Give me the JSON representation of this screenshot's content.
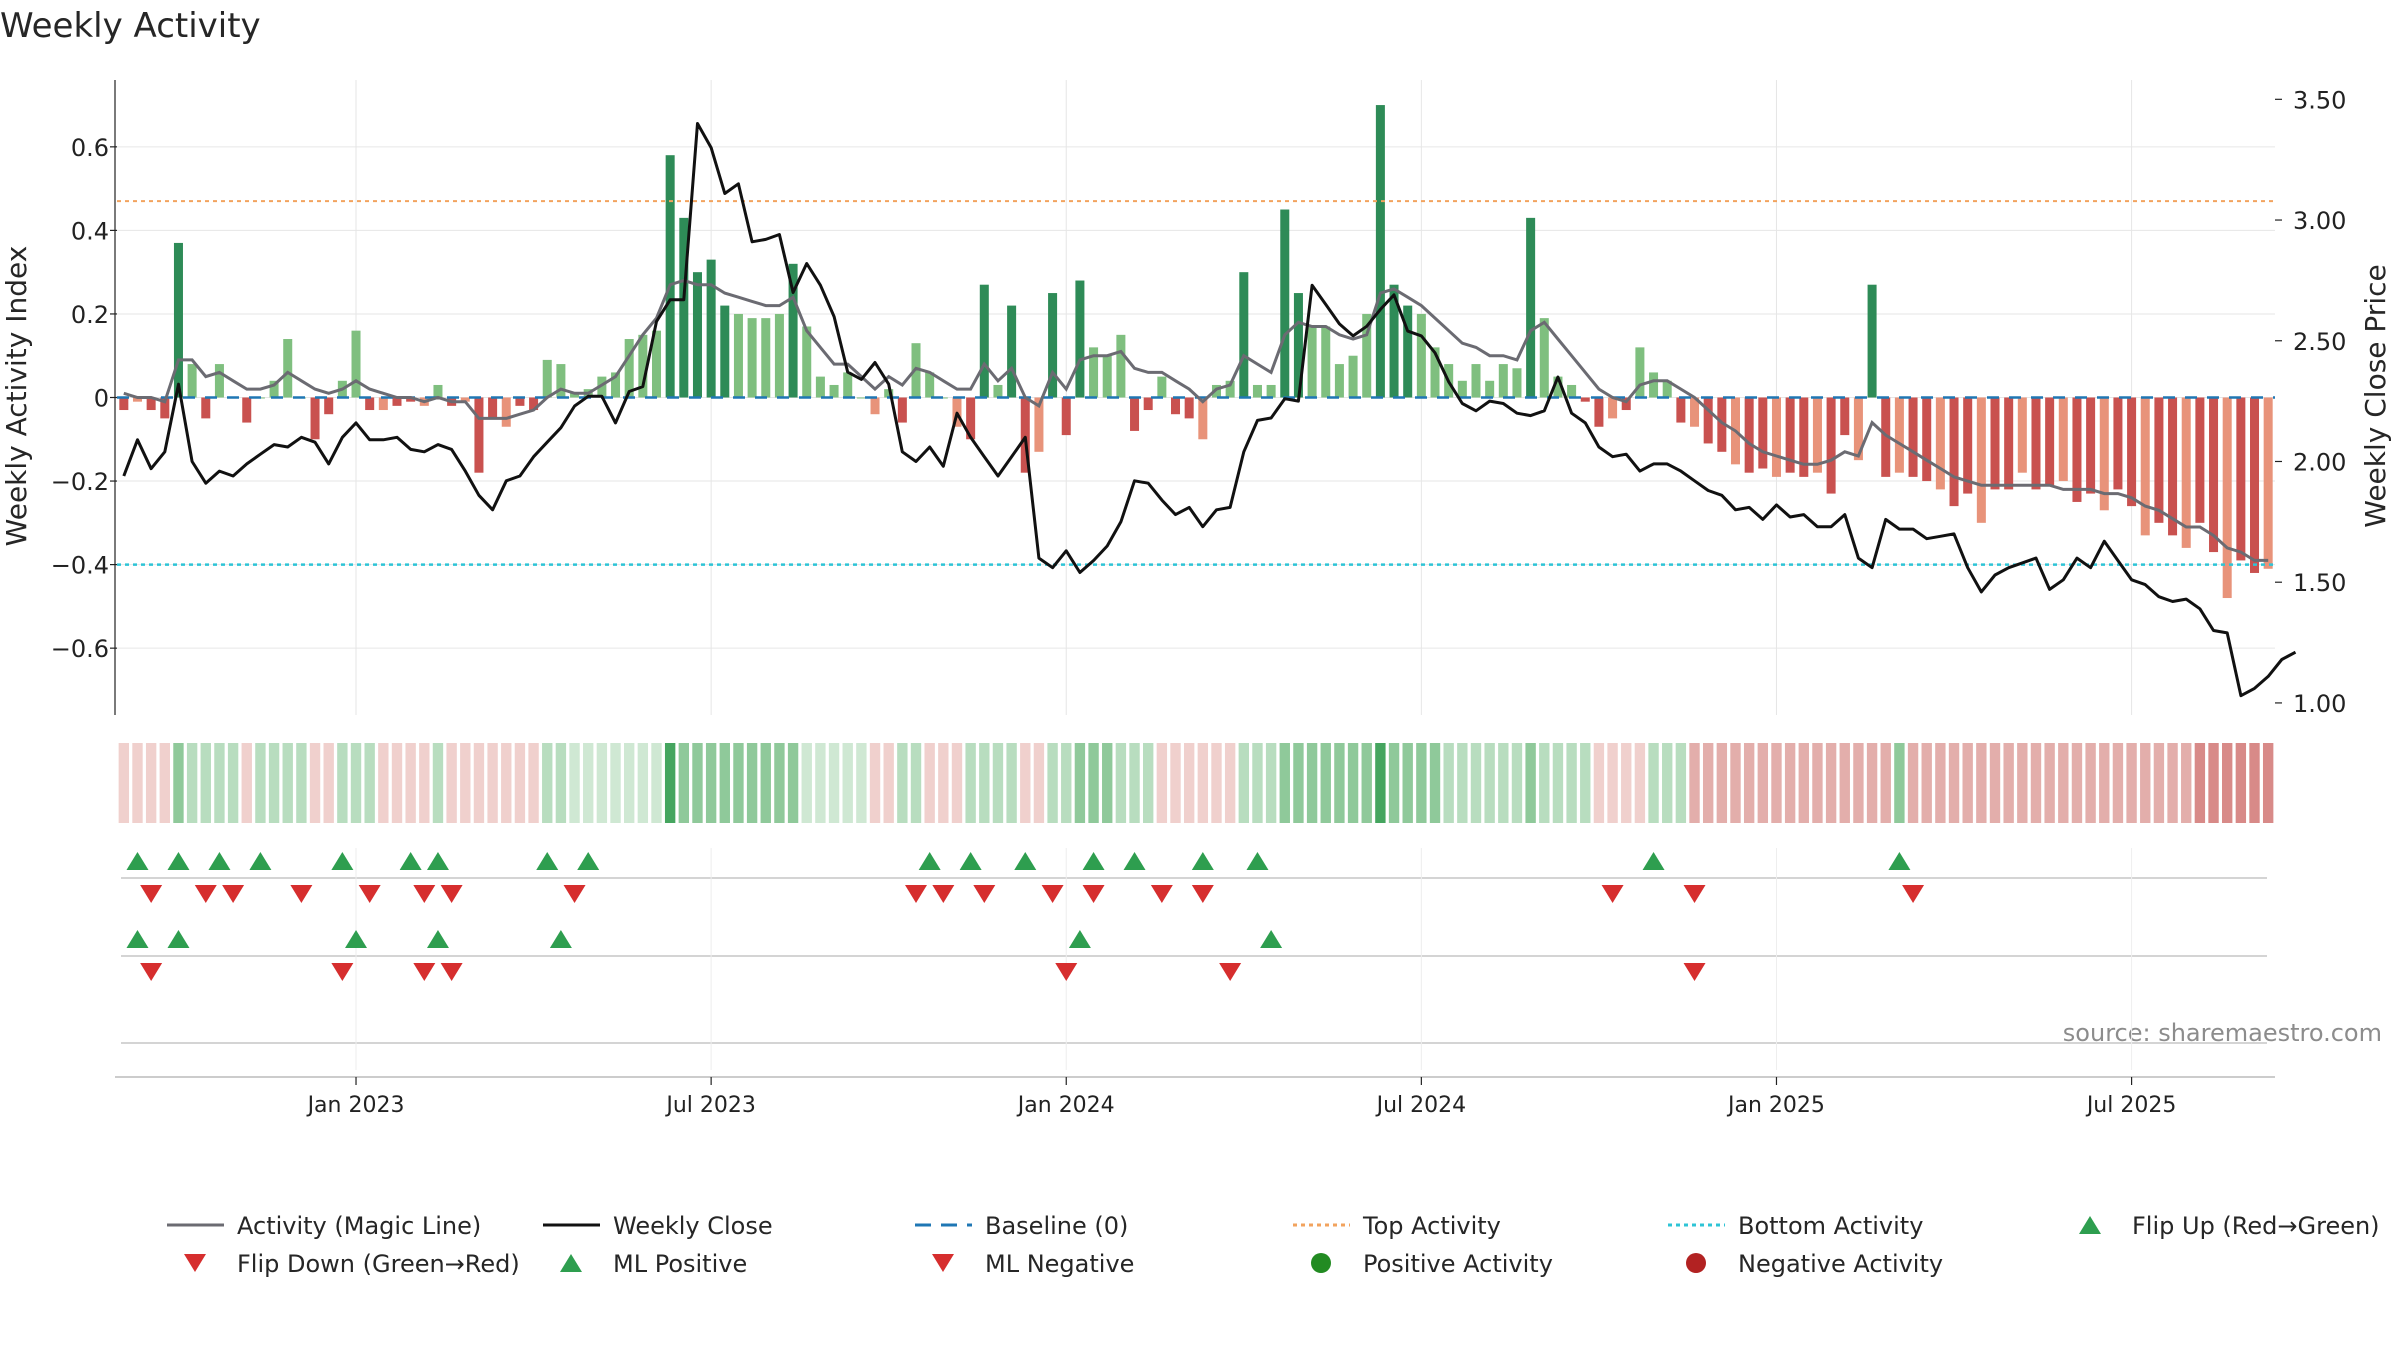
{
  "chart_data": {
    "type": "bar",
    "title": "Weekly Activity",
    "ylabel_left": "Weekly Activity Index",
    "ylabel_right": "Weekly Close Price",
    "source": "source: sharemaestro.com",
    "x_start": "2022-09-05",
    "x_end": "2025-09-22",
    "ylim_left": [
      -0.76,
      0.76
    ],
    "ylim_right": [
      0.95,
      3.58
    ],
    "yticks_left": [
      {
        "v": 0.6,
        "label": "0.6"
      },
      {
        "v": 0.4,
        "label": "0.4"
      },
      {
        "v": 0.2,
        "label": "0.2"
      },
      {
        "v": 0,
        "label": "0"
      },
      {
        "v": -0.2,
        "label": "−0.2"
      },
      {
        "v": -0.4,
        "label": "−0.4"
      },
      {
        "v": -0.6,
        "label": "−0.6"
      }
    ],
    "yticks_right": [
      {
        "v": 3.5,
        "label": "3.50"
      },
      {
        "v": 3.0,
        "label": "3.00"
      },
      {
        "v": 2.5,
        "label": "2.50"
      },
      {
        "v": 2.0,
        "label": "2.00"
      },
      {
        "v": 1.5,
        "label": "1.50"
      },
      {
        "v": 1.0,
        "label": "1.00"
      }
    ],
    "xticks": [
      {
        "label": "Jan 2023",
        "index": 17
      },
      {
        "label": "Jul 2023",
        "index": 43
      },
      {
        "label": "Jan 2024",
        "index": 69
      },
      {
        "label": "Jul 2024",
        "index": 95
      },
      {
        "label": "Jan 2025",
        "index": 121
      },
      {
        "label": "Jul 2025",
        "index": 147
      }
    ],
    "top_activity": 0.47,
    "bottom_activity": -0.4,
    "activity": [
      -0.03,
      -0.01,
      -0.03,
      -0.05,
      0.37,
      0.08,
      -0.05,
      0.08,
      0.0,
      -0.06,
      0.0,
      0.04,
      0.14,
      0.0,
      -0.1,
      -0.04,
      0.04,
      0.16,
      -0.03,
      -0.03,
      -0.02,
      -0.01,
      -0.02,
      0.03,
      -0.02,
      -0.01,
      -0.18,
      -0.05,
      -0.07,
      -0.02,
      -0.03,
      0.09,
      0.08,
      0.01,
      0.02,
      0.05,
      0.06,
      0.14,
      0.15,
      0.16,
      0.58,
      0.43,
      0.3,
      0.33,
      0.22,
      0.2,
      0.19,
      0.19,
      0.2,
      0.32,
      0.17,
      0.05,
      0.03,
      0.06,
      0.0,
      -0.04,
      0.02,
      -0.06,
      0.13,
      0.06,
      0.0,
      -0.07,
      -0.1,
      0.27,
      0.03,
      0.22,
      -0.18,
      -0.13,
      0.25,
      -0.09,
      0.28,
      0.12,
      0.1,
      0.15,
      -0.08,
      -0.03,
      0.05,
      -0.04,
      -0.05,
      -0.1,
      0.03,
      0.04,
      0.3,
      0.03,
      0.03,
      0.45,
      0.25,
      0.17,
      0.17,
      0.08,
      0.1,
      0.2,
      0.7,
      0.27,
      0.22,
      0.2,
      0.12,
      0.08,
      0.04,
      0.08,
      0.04,
      0.08,
      0.07,
      0.43,
      0.19,
      0.05,
      0.03,
      -0.01,
      -0.07,
      -0.05,
      -0.03,
      0.12,
      0.06,
      0.04,
      -0.06,
      -0.07,
      -0.11,
      -0.13,
      -0.16,
      -0.18,
      -0.17,
      -0.19,
      -0.18,
      -0.19,
      -0.18,
      -0.23,
      -0.09,
      -0.15,
      0.27,
      -0.19,
      -0.18,
      -0.19,
      -0.2,
      -0.22,
      -0.26,
      -0.23,
      -0.3,
      -0.22,
      -0.22,
      -0.18,
      -0.22,
      -0.21,
      -0.2,
      -0.25,
      -0.23,
      -0.27,
      -0.22,
      -0.26,
      -0.33,
      -0.3,
      -0.33,
      -0.36,
      -0.3,
      -0.37,
      -0.48,
      -0.39,
      -0.42,
      -0.41
    ],
    "magic_line": [
      0.01,
      0.0,
      0.0,
      -0.01,
      0.09,
      0.09,
      0.05,
      0.06,
      0.04,
      0.02,
      0.02,
      0.03,
      0.06,
      0.04,
      0.02,
      0.01,
      0.02,
      0.04,
      0.02,
      0.01,
      0.0,
      0.0,
      -0.01,
      0.0,
      -0.01,
      -0.01,
      -0.05,
      -0.05,
      -0.05,
      -0.04,
      -0.03,
      0.0,
      0.02,
      0.01,
      0.01,
      0.03,
      0.05,
      0.1,
      0.15,
      0.19,
      0.27,
      0.28,
      0.27,
      0.27,
      0.25,
      0.24,
      0.23,
      0.22,
      0.22,
      0.24,
      0.16,
      0.12,
      0.08,
      0.08,
      0.05,
      0.02,
      0.05,
      0.03,
      0.07,
      0.06,
      0.04,
      0.02,
      0.02,
      0.08,
      0.04,
      0.07,
      0.0,
      -0.02,
      0.06,
      0.02,
      0.09,
      0.1,
      0.1,
      0.11,
      0.07,
      0.06,
      0.06,
      0.04,
      0.02,
      -0.01,
      0.02,
      0.03,
      0.1,
      0.08,
      0.06,
      0.15,
      0.18,
      0.17,
      0.17,
      0.15,
      0.14,
      0.15,
      0.25,
      0.26,
      0.24,
      0.22,
      0.19,
      0.16,
      0.13,
      0.12,
      0.1,
      0.1,
      0.09,
      0.16,
      0.18,
      0.14,
      0.1,
      0.06,
      0.02,
      0.0,
      -0.01,
      0.03,
      0.04,
      0.04,
      0.02,
      0.0,
      -0.03,
      -0.06,
      -0.08,
      -0.11,
      -0.13,
      -0.14,
      -0.15,
      -0.16,
      -0.16,
      -0.15,
      -0.13,
      -0.14,
      -0.06,
      -0.09,
      -0.11,
      -0.13,
      -0.15,
      -0.17,
      -0.19,
      -0.2,
      -0.21,
      -0.21,
      -0.21,
      -0.21,
      -0.21,
      -0.21,
      -0.22,
      -0.22,
      -0.22,
      -0.23,
      -0.23,
      -0.24,
      -0.26,
      -0.27,
      -0.29,
      -0.31,
      -0.31,
      -0.33,
      -0.36,
      -0.37,
      -0.39,
      -0.39
    ],
    "weekly_close": [
      1.94,
      2.09,
      1.97,
      2.04,
      2.32,
      2.0,
      1.91,
      1.96,
      1.94,
      1.99,
      2.03,
      2.07,
      2.06,
      2.1,
      2.08,
      1.99,
      2.1,
      2.16,
      2.09,
      2.09,
      2.1,
      2.05,
      2.04,
      2.07,
      2.05,
      1.96,
      1.86,
      1.8,
      1.92,
      1.94,
      2.02,
      2.08,
      2.14,
      2.23,
      2.27,
      2.27,
      2.16,
      2.29,
      2.31,
      2.58,
      2.67,
      2.67,
      3.4,
      3.3,
      3.11,
      3.15,
      2.91,
      2.92,
      2.94,
      2.7,
      2.82,
      2.73,
      2.6,
      2.37,
      2.34,
      2.41,
      2.32,
      2.04,
      2.0,
      2.06,
      1.98,
      2.2,
      2.1,
      2.02,
      1.94,
      2.02,
      2.1,
      1.6,
      1.56,
      1.63,
      1.54,
      1.59,
      1.65,
      1.75,
      1.92,
      1.91,
      1.84,
      1.78,
      1.81,
      1.73,
      1.8,
      1.81,
      2.04,
      2.17,
      2.18,
      2.26,
      2.25,
      2.73,
      2.65,
      2.57,
      2.52,
      2.56,
      2.63,
      2.69,
      2.54,
      2.52,
      2.45,
      2.33,
      2.24,
      2.21,
      2.25,
      2.24,
      2.2,
      2.19,
      2.21,
      2.35,
      2.2,
      2.16,
      2.06,
      2.02,
      2.03,
      1.96,
      1.99,
      1.99,
      1.96,
      1.92,
      1.88,
      1.86,
      1.8,
      1.81,
      1.76,
      1.82,
      1.77,
      1.78,
      1.73,
      1.73,
      1.78,
      1.6,
      1.56,
      1.76,
      1.72,
      1.72,
      1.68,
      1.69,
      1.7,
      1.56,
      1.46,
      1.53,
      1.56,
      1.58,
      1.6,
      1.47,
      1.51,
      1.6,
      1.56,
      1.67,
      1.59,
      1.51,
      1.49,
      1.44,
      1.42,
      1.43,
      1.39,
      1.3,
      1.29,
      1.03,
      1.06,
      1.11,
      1.18,
      1.21
    ],
    "strip_segments": [
      {
        "from": 0,
        "to": 3,
        "tone": "neg-light"
      },
      {
        "from": 4,
        "to": 4,
        "tone": "pos-mid"
      },
      {
        "from": 5,
        "to": 8,
        "tone": "pos-light"
      },
      {
        "from": 9,
        "to": 9,
        "tone": "neg-light"
      },
      {
        "from": 10,
        "to": 13,
        "tone": "pos-light"
      },
      {
        "from": 14,
        "to": 15,
        "tone": "neg-light"
      },
      {
        "from": 16,
        "to": 18,
        "tone": "pos-light"
      },
      {
        "from": 19,
        "to": 22,
        "tone": "neg-light"
      },
      {
        "from": 23,
        "to": 23,
        "tone": "pos-light"
      },
      {
        "from": 24,
        "to": 30,
        "tone": "neg-light"
      },
      {
        "from": 31,
        "to": 32,
        "tone": "pos-light"
      },
      {
        "from": 33,
        "to": 39,
        "tone": "pos-pale"
      },
      {
        "from": 40,
        "to": 40,
        "tone": "pos-strong"
      },
      {
        "from": 41,
        "to": 49,
        "tone": "pos-mid"
      },
      {
        "from": 50,
        "to": 54,
        "tone": "pos-pale"
      },
      {
        "from": 55,
        "to": 56,
        "tone": "neg-light"
      },
      {
        "from": 57,
        "to": 58,
        "tone": "pos-light"
      },
      {
        "from": 59,
        "to": 61,
        "tone": "neg-light"
      },
      {
        "from": 62,
        "to": 65,
        "tone": "pos-light"
      },
      {
        "from": 66,
        "to": 67,
        "tone": "neg-light"
      },
      {
        "from": 68,
        "to": 69,
        "tone": "pos-light"
      },
      {
        "from": 70,
        "to": 72,
        "tone": "pos-mid"
      },
      {
        "from": 73,
        "to": 75,
        "tone": "pos-light"
      },
      {
        "from": 76,
        "to": 81,
        "tone": "neg-light"
      },
      {
        "from": 82,
        "to": 84,
        "tone": "pos-light"
      },
      {
        "from": 85,
        "to": 91,
        "tone": "pos-mid"
      },
      {
        "from": 92,
        "to": 92,
        "tone": "pos-strong"
      },
      {
        "from": 93,
        "to": 96,
        "tone": "pos-mid"
      },
      {
        "from": 97,
        "to": 102,
        "tone": "pos-light"
      },
      {
        "from": 103,
        "to": 103,
        "tone": "pos-mid"
      },
      {
        "from": 104,
        "to": 107,
        "tone": "pos-light"
      },
      {
        "from": 108,
        "to": 111,
        "tone": "neg-light"
      },
      {
        "from": 112,
        "to": 114,
        "tone": "pos-light"
      },
      {
        "from": 115,
        "to": 129,
        "tone": "neg-mid"
      },
      {
        "from": 130,
        "to": 130,
        "tone": "pos-mid"
      },
      {
        "from": 131,
        "to": 151,
        "tone": "neg-mid"
      },
      {
        "from": 152,
        "to": 159,
        "tone": "neg-strong"
      }
    ],
    "flip_up": [
      1,
      4,
      7,
      10,
      16,
      21,
      23,
      31,
      34,
      59,
      62,
      66,
      71,
      74,
      79,
      83,
      112,
      130
    ],
    "flip_down": [
      2,
      6,
      8,
      13,
      18,
      22,
      24,
      33,
      58,
      60,
      63,
      68,
      71,
      76,
      79,
      109,
      115,
      131
    ],
    "ml_positive": [
      1,
      4,
      17,
      23,
      32,
      70,
      84
    ],
    "ml_negative": [
      2,
      16,
      22,
      24,
      69,
      81,
      115
    ],
    "legend": [
      {
        "label": "Activity (Magic Line)",
        "kind": "line",
        "color": "#6b6b72"
      },
      {
        "label": "Weekly Close",
        "kind": "line",
        "color": "#111111"
      },
      {
        "label": "Baseline (0)",
        "kind": "dash",
        "color": "#1f77b4"
      },
      {
        "label": "Top Activity",
        "kind": "dot",
        "color": "#f2a35e"
      },
      {
        "label": "Bottom Activity",
        "kind": "dot",
        "color": "#2ec4d6"
      },
      {
        "label": "Flip Up (Red→Green)",
        "kind": "up",
        "color": "#2e9e4f"
      },
      {
        "label": "Flip Down (Green→Red)",
        "kind": "down",
        "color": "#d62e2e"
      },
      {
        "label": "ML Positive",
        "kind": "up",
        "color": "#2e9e4f"
      },
      {
        "label": "ML Negative",
        "kind": "down",
        "color": "#d62e2e"
      },
      {
        "label": "Positive Activity",
        "kind": "circle",
        "color": "#228b22"
      },
      {
        "label": "Negative Activity",
        "kind": "circle",
        "color": "#b22222"
      }
    ],
    "colors": {
      "pos_strong": "#2e8b57",
      "pos_light": "#7fbf7f",
      "neg_strong": "#c9514f",
      "neg_light": "#e8937a",
      "grid": "#e6e6e6",
      "axis": "#222222"
    }
  }
}
